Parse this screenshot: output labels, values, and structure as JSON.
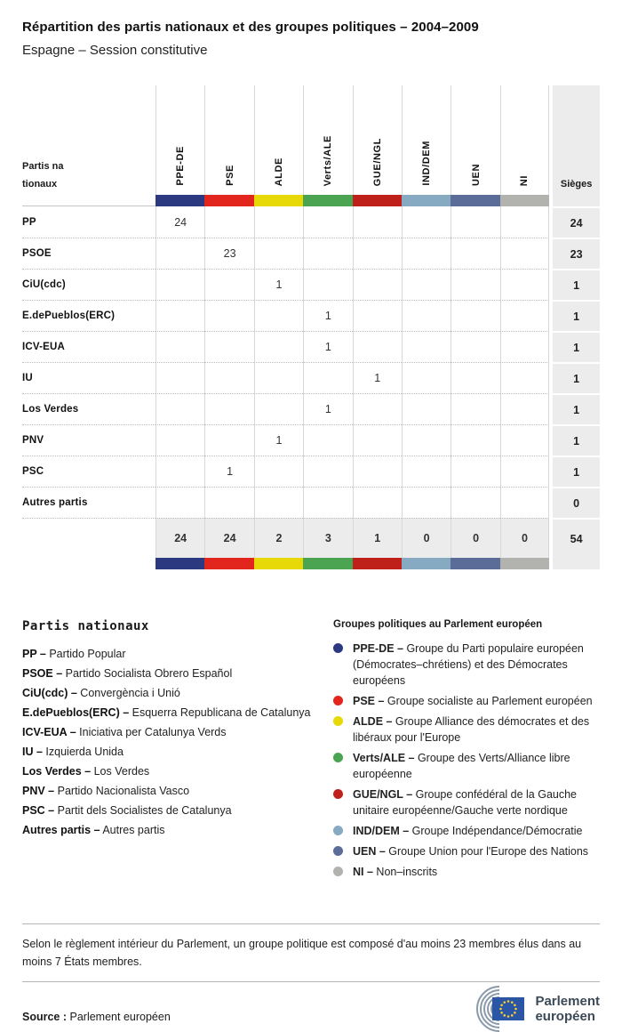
{
  "title": "Répartition des partis nationaux et des groupes politiques – 2004–2009",
  "subtitle": "Espagne – Session constitutive",
  "legend_separator": "–",
  "table": {
    "row_header": "Partis nationaux",
    "seats_header": "Sièges",
    "groups": [
      {
        "code": "PPE-DE",
        "color": "#2b3a80"
      },
      {
        "code": "PSE",
        "color": "#e2261d"
      },
      {
        "code": "ALDE",
        "color": "#e7d907"
      },
      {
        "code": "Verts/ALE",
        "color": "#4ba452"
      },
      {
        "code": "GUE/NGL",
        "color": "#bf2019"
      },
      {
        "code": "IND/DEM",
        "color": "#86aac2"
      },
      {
        "code": "UEN",
        "color": "#5b6c98"
      },
      {
        "code": "NI",
        "color": "#b2b2ae"
      }
    ],
    "rows": [
      {
        "party": "PP",
        "values": [
          "24",
          "",
          "",
          "",
          "",
          "",
          "",
          ""
        ],
        "seats": "24"
      },
      {
        "party": "PSOE",
        "values": [
          "",
          "23",
          "",
          "",
          "",
          "",
          "",
          ""
        ],
        "seats": "23"
      },
      {
        "party": "CiU(cdc)",
        "values": [
          "",
          "",
          "1",
          "",
          "",
          "",
          "",
          ""
        ],
        "seats": "1"
      },
      {
        "party": "E.dePueblos(ERC)",
        "values": [
          "",
          "",
          "",
          "1",
          "",
          "",
          "",
          ""
        ],
        "seats": "1"
      },
      {
        "party": "ICV-EUA",
        "values": [
          "",
          "",
          "",
          "1",
          "",
          "",
          "",
          ""
        ],
        "seats": "1"
      },
      {
        "party": "IU",
        "values": [
          "",
          "",
          "",
          "",
          "1",
          "",
          "",
          ""
        ],
        "seats": "1"
      },
      {
        "party": "Los Verdes",
        "values": [
          "",
          "",
          "",
          "1",
          "",
          "",
          "",
          ""
        ],
        "seats": "1"
      },
      {
        "party": "PNV",
        "values": [
          "",
          "",
          "1",
          "",
          "",
          "",
          "",
          ""
        ],
        "seats": "1"
      },
      {
        "party": "PSC",
        "values": [
          "",
          "1",
          "",
          "",
          "",
          "",
          "",
          ""
        ],
        "seats": "1"
      },
      {
        "party": "Autres partis",
        "values": [
          "",
          "",
          "",
          "",
          "",
          "",
          "",
          ""
        ],
        "seats": "0"
      }
    ],
    "totals": {
      "values": [
        "24",
        "24",
        "2",
        "3",
        "1",
        "0",
        "0",
        "0"
      ],
      "seats": "54"
    }
  },
  "chart_data": {
    "type": "table",
    "title": "Répartition des partis nationaux et des groupes politiques – 2004–2009",
    "subtitle": "Espagne – Session constitutive",
    "columns": [
      "PPE-DE",
      "PSE",
      "ALDE",
      "Verts/ALE",
      "GUE/NGL",
      "IND/DEM",
      "UEN",
      "NI",
      "Sièges"
    ],
    "rows": [
      {
        "party": "PP",
        "values": [
          24,
          null,
          null,
          null,
          null,
          null,
          null,
          null
        ],
        "seats": 24
      },
      {
        "party": "PSOE",
        "values": [
          null,
          23,
          null,
          null,
          null,
          null,
          null,
          null
        ],
        "seats": 23
      },
      {
        "party": "CiU(cdc)",
        "values": [
          null,
          null,
          1,
          null,
          null,
          null,
          null,
          null
        ],
        "seats": 1
      },
      {
        "party": "E.dePueblos(ERC)",
        "values": [
          null,
          null,
          null,
          1,
          null,
          null,
          null,
          null
        ],
        "seats": 1
      },
      {
        "party": "ICV-EUA",
        "values": [
          null,
          null,
          null,
          1,
          null,
          null,
          null,
          null
        ],
        "seats": 1
      },
      {
        "party": "IU",
        "values": [
          null,
          null,
          null,
          null,
          1,
          null,
          null,
          null
        ],
        "seats": 1
      },
      {
        "party": "Los Verdes",
        "values": [
          null,
          null,
          null,
          1,
          null,
          null,
          null,
          null
        ],
        "seats": 1
      },
      {
        "party": "PNV",
        "values": [
          null,
          null,
          1,
          null,
          null,
          null,
          null,
          null
        ],
        "seats": 1
      },
      {
        "party": "PSC",
        "values": [
          null,
          1,
          null,
          null,
          null,
          null,
          null,
          null
        ],
        "seats": 1
      },
      {
        "party": "Autres partis",
        "values": [
          null,
          null,
          null,
          null,
          null,
          null,
          null,
          null
        ],
        "seats": 0
      }
    ],
    "totals": {
      "values": [
        24,
        24,
        2,
        3,
        1,
        0,
        0,
        0
      ],
      "seats": 54
    }
  },
  "legend_parties": {
    "heading": "Partis nationaux",
    "items": [
      {
        "code": "PP",
        "name": "Partido Popular"
      },
      {
        "code": "PSOE",
        "name": "Partido Socialista Obrero Español"
      },
      {
        "code": "CiU(cdc)",
        "name": "Convergència i Unió"
      },
      {
        "code": "E.dePueblos(ERC)",
        "name": "Esquerra Republicana de Catalunya"
      },
      {
        "code": "ICV-EUA",
        "name": "Iniciativa per Catalunya Verds"
      },
      {
        "code": "IU",
        "name": "Izquierda Unida"
      },
      {
        "code": "Los Verdes",
        "name": "Los Verdes"
      },
      {
        "code": "PNV",
        "name": "Partido Nacionalista Vasco"
      },
      {
        "code": "PSC",
        "name": "Partit dels Socialistes de Catalunya"
      },
      {
        "code": "Autres partis",
        "name": "Autres partis"
      }
    ]
  },
  "legend_groups": {
    "heading": "Groupes politiques au Parlement européen",
    "items": [
      {
        "code": "PPE-DE",
        "color": "#2b3a80",
        "name": "Groupe du Parti populaire européen (Démocrates–chrétiens) et des Démocrates européens"
      },
      {
        "code": "PSE",
        "color": "#e2261d",
        "name": "Groupe socialiste au Parlement européen"
      },
      {
        "code": "ALDE",
        "color": "#e7d907",
        "name": "Groupe Alliance des démocrates et des libéraux pour l'Europe"
      },
      {
        "code": "Verts/ALE",
        "color": "#4ba452",
        "name": "Groupe des Verts/Alliance libre européenne"
      },
      {
        "code": "GUE/NGL",
        "color": "#bf2019",
        "name": "Groupe confédéral de la Gauche unitaire européenne/Gauche verte nordique"
      },
      {
        "code": "IND/DEM",
        "color": "#86aac2",
        "name": "Groupe Indépendance/Démocratie"
      },
      {
        "code": "UEN",
        "color": "#5b6c98",
        "name": "Groupe Union pour l'Europe des Nations"
      },
      {
        "code": "NI",
        "color": "#b2b2ae",
        "name": "Non–inscrits"
      }
    ]
  },
  "note": "Selon le règlement intérieur du Parlement, un groupe politique est composé d'au moins 23 membres élus dans au moins 7 États membres.",
  "source_label": "Source :",
  "source_value": "Parlement européen",
  "logo": {
    "line1": "Parlement",
    "line2": "européen",
    "flag_color": "#2a56a5",
    "star_color": "#f8d12e",
    "arc_color": "#8a9aab"
  }
}
